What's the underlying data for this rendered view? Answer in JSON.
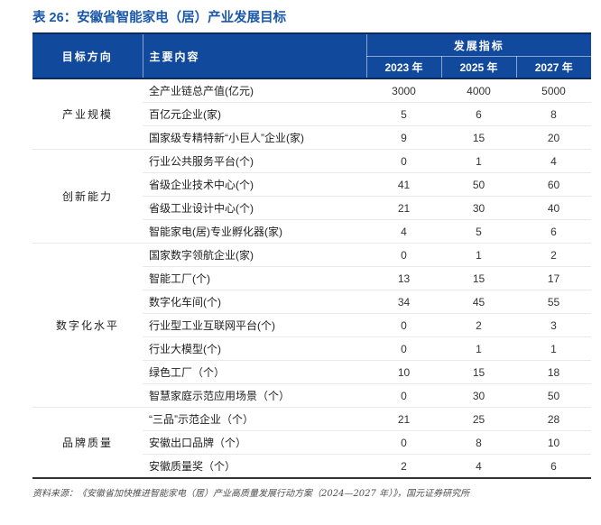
{
  "page": {
    "title": "表 26：安徽省智能家电（居）产业发展目标",
    "source_note": "资料来源：《安徽省加快推进智能家电（居）产业高质量发展行动方案（2024—2027 年）》，国元证券研究所"
  },
  "colors": {
    "header_bg": "#11499D",
    "header_edge": "#0A2A5C",
    "title_blue": "#1B58A8",
    "row_divider": "#E9E9E9",
    "table_bottom_border": "#333333",
    "source_gray": "#4F4F4F"
  },
  "table": {
    "header": {
      "direction": "目标方向",
      "content": "主要内容",
      "indicator_group": "发展指标",
      "years": [
        "2023 年",
        "2025 年",
        "2027 年"
      ]
    },
    "groups": [
      {
        "label": "产业规模",
        "rowspan": 3
      },
      {
        "label": "创新能力",
        "rowspan": 4
      },
      {
        "label": "数字化水平",
        "rowspan": 7
      },
      {
        "label": "品牌质量",
        "rowspan": 3
      }
    ],
    "rows": [
      {
        "label": "全产业链总产值(亿元)",
        "y2023": "3000",
        "y2025": "4000",
        "y2027": "5000"
      },
      {
        "label": "百亿元企业(家)",
        "y2023": "5",
        "y2025": "6",
        "y2027": "8"
      },
      {
        "label": "国家级专精特新“小巨人”企业(家)",
        "y2023": "9",
        "y2025": "15",
        "y2027": "20"
      },
      {
        "label": "行业公共服务平台(个)",
        "y2023": "0",
        "y2025": "1",
        "y2027": "4"
      },
      {
        "label": "省级企业技术中心(个)",
        "y2023": "41",
        "y2025": "50",
        "y2027": "60"
      },
      {
        "label": "省级工业设计中心(个)",
        "y2023": "21",
        "y2025": "30",
        "y2027": "40"
      },
      {
        "label": "智能家电(居)专业孵化器(家)",
        "y2023": "4",
        "y2025": "5",
        "y2027": "6"
      },
      {
        "label": "国家数字领航企业(家)",
        "y2023": "0",
        "y2025": "1",
        "y2027": "2"
      },
      {
        "label": "智能工厂(个)",
        "y2023": "13",
        "y2025": "15",
        "y2027": "17"
      },
      {
        "label": "数字化车间(个)",
        "y2023": "34",
        "y2025": "45",
        "y2027": "55"
      },
      {
        "label": "行业型工业互联网平台(个)",
        "y2023": "0",
        "y2025": "2",
        "y2027": "3"
      },
      {
        "label": "行业大模型(个)",
        "y2023": "0",
        "y2025": "1",
        "y2027": "1"
      },
      {
        "label": "绿色工厂（个）",
        "y2023": "10",
        "y2025": "15",
        "y2027": "18"
      },
      {
        "label": "智慧家庭示范应用场景（个）",
        "y2023": "0",
        "y2025": "30",
        "y2027": "50"
      },
      {
        "label": "“三品”示范企业（个）",
        "y2023": "21",
        "y2025": "25",
        "y2027": "28"
      },
      {
        "label": "安徽出口品牌（个）",
        "y2023": "0",
        "y2025": "8",
        "y2027": "10"
      },
      {
        "label": "安徽质量奖（个）",
        "y2023": "2",
        "y2025": "4",
        "y2027": "6"
      }
    ]
  }
}
